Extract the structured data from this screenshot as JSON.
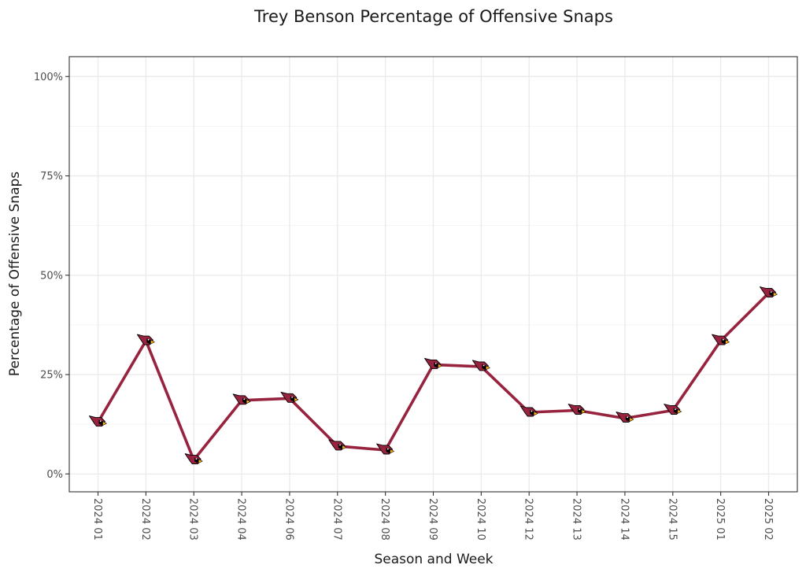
{
  "chart_data": {
    "type": "line",
    "title": "Trey Benson Percentage of Offensive Snaps",
    "xlabel": "Season and Week",
    "ylabel": "Percentage of Offensive Snaps",
    "categories": [
      "2024 01",
      "2024 02",
      "2024 03",
      "2024 04",
      "2024 06",
      "2024 07",
      "2024 08",
      "2024 09",
      "2024 10",
      "2024 12",
      "2024 13",
      "2024 14",
      "2024 15",
      "2025 01",
      "2025 02"
    ],
    "values": [
      13,
      33.5,
      3.5,
      18.5,
      19,
      7,
      6,
      27.5,
      27,
      15.5,
      16,
      14,
      16,
      33.5,
      45.5
    ],
    "ylim": [
      -4.5,
      105
    ],
    "yticks": [
      0,
      25,
      50,
      75,
      100
    ],
    "ytick_labels": [
      "0%",
      "25%",
      "50%",
      "75%",
      "100%"
    ],
    "grid": true,
    "line_color": "#97233F",
    "marker": "cardinals-logo-icon",
    "marker_colors": {
      "head": "#97233F",
      "face": "#000000",
      "beak": "#FFB612",
      "outline": "#000000"
    }
  }
}
